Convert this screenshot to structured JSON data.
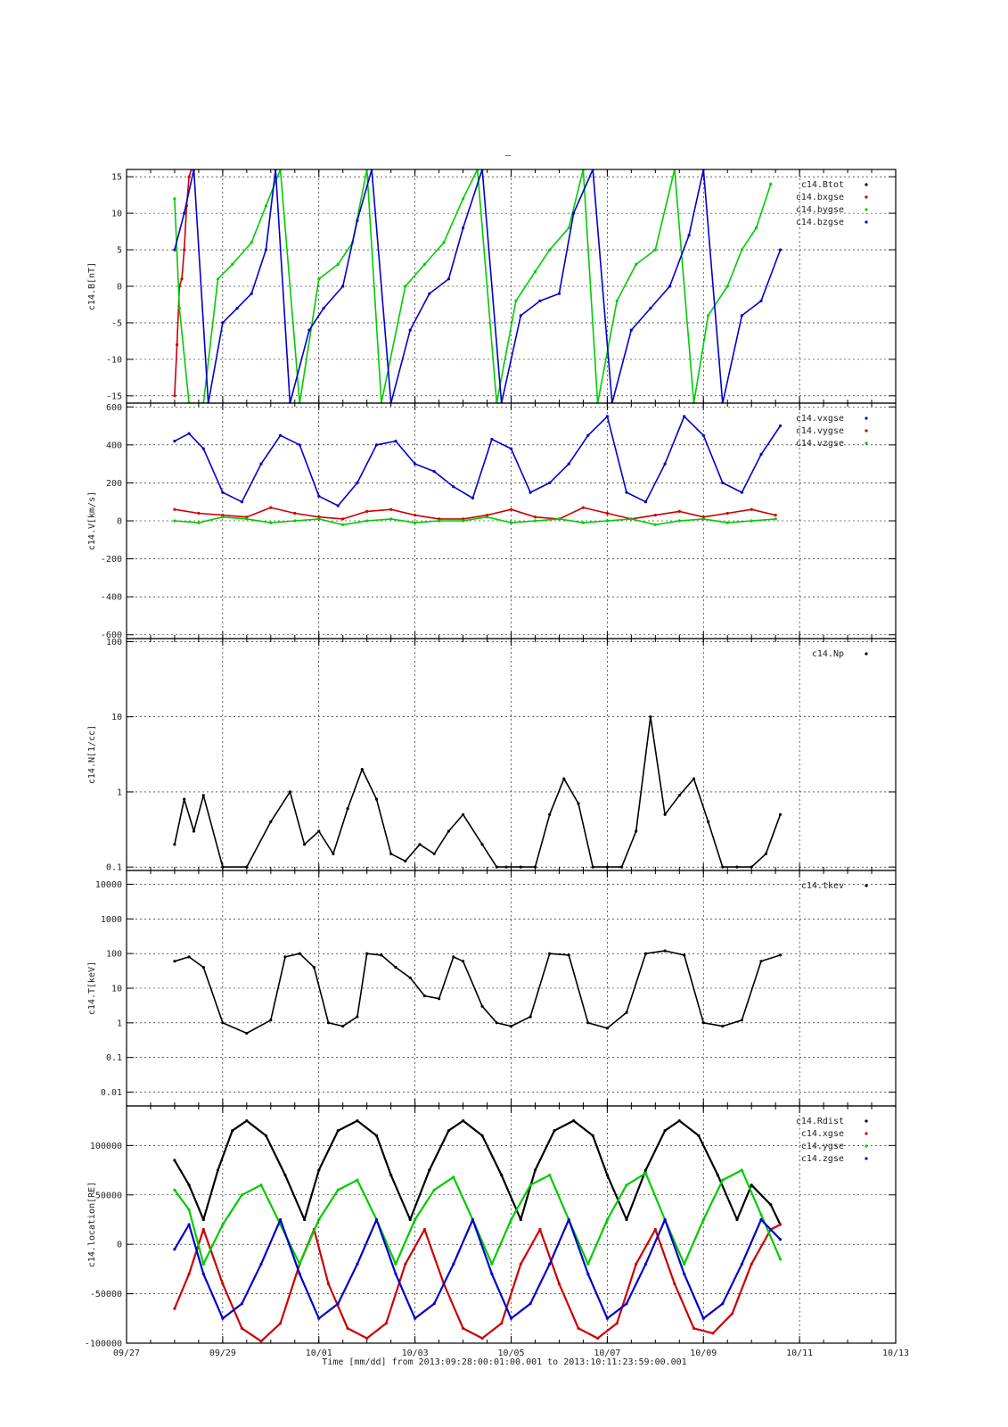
{
  "figure": {
    "top_label": "–",
    "time_label": "Time [mm/dd]  from 2013:09:28:00:01:00.001  to  2013:10:11:23:59:00.001"
  },
  "colors": {
    "black": "#000000",
    "red": "#cc0000",
    "green": "#00cc00",
    "blue": "#0000cc"
  },
  "chart_data": [
    {
      "type": "scatter",
      "ylabel": "c14.B[nT]",
      "ylim": [
        -16,
        16
      ],
      "yticks": [
        -15,
        -10,
        -5,
        0,
        5,
        10,
        15
      ],
      "legend": [
        "c14.Btot",
        "c14.bxgse",
        "c14.bygse",
        "c14.bzgse"
      ],
      "series": [
        {
          "name": "c14.bxgse",
          "color": "red",
          "x": [
            1.0,
            1.05,
            1.1,
            1.15,
            1.2,
            1.25,
            1.3,
            1.35,
            1.4
          ],
          "y": [
            -15,
            -8,
            0,
            1,
            5,
            11,
            15,
            16,
            16
          ]
        },
        {
          "name": "c14.bygse",
          "color": "green",
          "x": [
            1.0,
            1.1,
            1.3,
            1.6,
            1.9,
            2.2,
            2.6,
            2.9,
            3.2,
            3.6,
            4.0,
            4.4,
            4.7,
            5.0,
            5.3,
            5.8,
            6.2,
            6.6,
            7.0,
            7.3,
            7.7,
            8.1,
            8.5,
            8.8,
            9.2,
            9.5,
            9.8,
            10.2,
            10.6,
            11.0,
            11.4,
            11.8,
            12.1,
            12.5,
            12.8,
            13.1,
            13.4
          ],
          "y": [
            12,
            -3,
            -16,
            -16,
            1,
            3,
            6,
            11,
            16,
            -16,
            1,
            3,
            6,
            16,
            -16,
            0,
            3,
            6,
            12,
            16,
            -16,
            -2,
            2,
            5,
            8,
            16,
            -16,
            -2,
            3,
            5,
            16,
            -16,
            -4,
            0,
            5,
            8,
            14
          ]
        },
        {
          "name": "c14.bzgse",
          "color": "blue",
          "x": [
            1.0,
            1.2,
            1.4,
            1.7,
            2.0,
            2.3,
            2.6,
            2.9,
            3.1,
            3.4,
            3.8,
            4.1,
            4.5,
            4.8,
            5.1,
            5.5,
            5.9,
            6.3,
            6.7,
            7.0,
            7.4,
            7.8,
            8.2,
            8.6,
            9.0,
            9.3,
            9.7,
            10.1,
            10.5,
            10.9,
            11.3,
            11.7,
            12.0,
            12.4,
            12.8,
            13.2,
            13.6
          ],
          "y": [
            5,
            10,
            16,
            -16,
            -5,
            -3,
            -1,
            5,
            16,
            -16,
            -6,
            -3,
            0,
            9,
            16,
            -16,
            -6,
            -1,
            1,
            8,
            16,
            -16,
            -4,
            -2,
            -1,
            10,
            16,
            -16,
            -6,
            -3,
            0,
            7,
            16,
            -16,
            -4,
            -2,
            5
          ]
        }
      ]
    },
    {
      "type": "scatter",
      "ylabel": "c14.V[km/s]",
      "ylim": [
        -620,
        620
      ],
      "yticks": [
        -600,
        -400,
        -200,
        0,
        200,
        400,
        600
      ],
      "legend": [
        "c14.vxgse",
        "c14.vygse",
        "c14.vzgse"
      ],
      "series": [
        {
          "name": "c14.vxgse",
          "color": "blue",
          "x": [
            1.0,
            1.3,
            1.6,
            2.0,
            2.4,
            2.8,
            3.2,
            3.6,
            4.0,
            4.4,
            4.8,
            5.2,
            5.6,
            6.0,
            6.4,
            6.8,
            7.2,
            7.6,
            8.0,
            8.4,
            8.8,
            9.2,
            9.6,
            10.0,
            10.4,
            10.8,
            11.2,
            11.6,
            12.0,
            12.4,
            12.8,
            13.2,
            13.6
          ],
          "y": [
            420,
            460,
            380,
            150,
            100,
            300,
            450,
            400,
            130,
            80,
            200,
            400,
            420,
            300,
            260,
            180,
            120,
            430,
            380,
            150,
            200,
            300,
            450,
            550,
            150,
            100,
            300,
            550,
            450,
            200,
            150,
            350,
            500
          ]
        },
        {
          "name": "c14.vygse",
          "color": "red",
          "x": [
            1.0,
            1.5,
            2.0,
            2.5,
            3.0,
            3.5,
            4.0,
            4.5,
            5.0,
            5.5,
            6.0,
            6.5,
            7.0,
            7.5,
            8.0,
            8.5,
            9.0,
            9.5,
            10.0,
            10.5,
            11.0,
            11.5,
            12.0,
            12.5,
            13.0,
            13.5
          ],
          "y": [
            60,
            40,
            30,
            20,
            70,
            40,
            20,
            10,
            50,
            60,
            30,
            10,
            10,
            30,
            60,
            20,
            10,
            70,
            40,
            10,
            30,
            50,
            20,
            40,
            60,
            30
          ]
        },
        {
          "name": "c14.vzgse",
          "color": "green",
          "x": [
            1.0,
            1.5,
            2.0,
            2.5,
            3.0,
            3.5,
            4.0,
            4.5,
            5.0,
            5.5,
            6.0,
            6.5,
            7.0,
            7.5,
            8.0,
            8.5,
            9.0,
            9.5,
            10.0,
            10.5,
            11.0,
            11.5,
            12.0,
            12.5,
            13.0,
            13.5
          ],
          "y": [
            0,
            -10,
            20,
            10,
            -10,
            0,
            10,
            -20,
            0,
            10,
            -10,
            0,
            0,
            20,
            -10,
            0,
            10,
            -10,
            0,
            10,
            -20,
            0,
            10,
            -10,
            0,
            10
          ]
        }
      ]
    },
    {
      "type": "scatter",
      "ylabel": "c14.N[1/cc]",
      "yscale": "log",
      "ylim": [
        0.09,
        110
      ],
      "yticks": [
        0.1,
        1,
        10,
        100
      ],
      "legend": [
        "c14.Np"
      ],
      "series": [
        {
          "name": "c14.Np",
          "color": "black",
          "x": [
            1.0,
            1.2,
            1.4,
            1.6,
            2.0,
            2.5,
            3.0,
            3.4,
            3.7,
            4.0,
            4.3,
            4.6,
            4.9,
            5.2,
            5.5,
            5.8,
            6.1,
            6.4,
            6.7,
            7.0,
            7.4,
            7.7,
            7.9,
            8.2,
            8.5,
            8.8,
            9.1,
            9.4,
            9.7,
            10.0,
            10.3,
            10.6,
            10.9,
            11.2,
            11.5,
            11.8,
            12.1,
            12.4,
            12.7,
            13.0,
            13.3,
            13.6
          ],
          "y": [
            0.2,
            0.8,
            0.3,
            0.9,
            0.1,
            0.1,
            0.4,
            1.0,
            0.2,
            0.3,
            0.15,
            0.6,
            2.0,
            0.8,
            0.15,
            0.12,
            0.2,
            0.15,
            0.3,
            0.5,
            0.2,
            0.1,
            0.1,
            0.1,
            0.1,
            0.5,
            1.5,
            0.7,
            0.1,
            0.1,
            0.1,
            0.3,
            10.0,
            0.5,
            0.9,
            1.5,
            0.4,
            0.1,
            0.1,
            0.1,
            0.15,
            0.5
          ]
        }
      ]
    },
    {
      "type": "scatter",
      "ylabel": "c14.T[keV]",
      "yscale": "log",
      "ylim": [
        0.004,
        25000
      ],
      "yticks": [
        0.01,
        0.1,
        1,
        10,
        100,
        1000,
        10000
      ],
      "legend": [
        "c14.tkev"
      ],
      "series": [
        {
          "name": "c14.tkev",
          "color": "black",
          "x": [
            1.0,
            1.3,
            1.6,
            2.0,
            2.5,
            3.0,
            3.3,
            3.6,
            3.9,
            4.2,
            4.5,
            4.8,
            5.0,
            5.3,
            5.6,
            5.9,
            6.2,
            6.5,
            6.8,
            7.0,
            7.4,
            7.7,
            8.0,
            8.4,
            8.8,
            9.2,
            9.6,
            10.0,
            10.4,
            10.8,
            11.2,
            11.6,
            12.0,
            12.4,
            12.8,
            13.2,
            13.6
          ],
          "y": [
            60,
            80,
            40,
            1.0,
            0.5,
            1.2,
            80,
            100,
            40,
            1.0,
            0.8,
            1.5,
            100,
            90,
            40,
            20,
            6,
            5,
            80,
            60,
            3,
            1,
            0.8,
            1.5,
            100,
            90,
            1,
            0.7,
            2,
            100,
            120,
            90,
            1,
            0.8,
            1.2,
            60,
            90
          ]
        }
      ]
    },
    {
      "type": "line",
      "ylabel": "c14.location[RE]",
      "ylim": [
        -100000,
        140000
      ],
      "yticks": [
        -100000,
        -50000,
        0,
        50000,
        100000,
        150000
      ],
      "legend": [
        "c14.Rdist",
        "c14.xgse",
        "c14.ygse",
        "c14.zgse"
      ],
      "series": [
        {
          "name": "c14.Rdist",
          "color": "black",
          "x": [
            1.0,
            1.3,
            1.6,
            1.9,
            2.2,
            2.5,
            2.9,
            3.3,
            3.7,
            4.0,
            4.4,
            4.8,
            5.2,
            5.5,
            5.9,
            6.3,
            6.7,
            7.0,
            7.4,
            7.8,
            8.2,
            8.5,
            8.9,
            9.3,
            9.7,
            10.0,
            10.4,
            10.8,
            11.2,
            11.5,
            11.9,
            12.3,
            12.7,
            13.0,
            13.4,
            13.6
          ],
          "y": [
            85000,
            60000,
            25000,
            75000,
            115000,
            125000,
            110000,
            70000,
            25000,
            75000,
            115000,
            125000,
            110000,
            70000,
            25000,
            75000,
            115000,
            125000,
            110000,
            70000,
            25000,
            75000,
            115000,
            125000,
            110000,
            70000,
            25000,
            75000,
            115000,
            125000,
            110000,
            70000,
            25000,
            60000,
            40000,
            20000
          ]
        },
        {
          "name": "c14.xgse",
          "color": "red",
          "x": [
            1.0,
            1.3,
            1.6,
            2.0,
            2.4,
            2.8,
            3.2,
            3.6,
            3.9,
            4.2,
            4.6,
            5.0,
            5.4,
            5.8,
            6.2,
            6.6,
            7.0,
            7.4,
            7.8,
            8.2,
            8.6,
            9.0,
            9.4,
            9.8,
            10.2,
            10.6,
            11.0,
            11.4,
            11.8,
            12.2,
            12.6,
            13.0,
            13.4,
            13.6
          ],
          "y": [
            -65000,
            -30000,
            15000,
            -40000,
            -85000,
            -98000,
            -80000,
            -20000,
            15000,
            -40000,
            -85000,
            -95000,
            -80000,
            -20000,
            15000,
            -40000,
            -85000,
            -95000,
            -80000,
            -20000,
            15000,
            -40000,
            -85000,
            -95000,
            -80000,
            -20000,
            15000,
            -40000,
            -85000,
            -90000,
            -70000,
            -20000,
            15000,
            20000
          ]
        },
        {
          "name": "c14.ygse",
          "color": "green",
          "x": [
            1.0,
            1.3,
            1.6,
            2.0,
            2.4,
            2.8,
            3.2,
            3.6,
            4.0,
            4.4,
            4.8,
            5.2,
            5.6,
            6.0,
            6.4,
            6.8,
            7.2,
            7.6,
            8.0,
            8.4,
            8.8,
            9.2,
            9.6,
            10.0,
            10.4,
            10.8,
            11.2,
            11.6,
            12.0,
            12.4,
            12.8,
            13.2,
            13.6
          ],
          "y": [
            55000,
            35000,
            -20000,
            20000,
            50000,
            60000,
            20000,
            -20000,
            25000,
            55000,
            65000,
            25000,
            -20000,
            25000,
            55000,
            68000,
            25000,
            -20000,
            25000,
            60000,
            70000,
            25000,
            -20000,
            25000,
            60000,
            72000,
            25000,
            -20000,
            25000,
            65000,
            75000,
            30000,
            -15000
          ]
        },
        {
          "name": "c14.zgse",
          "color": "blue",
          "x": [
            1.0,
            1.3,
            1.6,
            2.0,
            2.4,
            2.8,
            3.2,
            3.6,
            4.0,
            4.4,
            4.8,
            5.2,
            5.6,
            6.0,
            6.4,
            6.8,
            7.2,
            7.6,
            8.0,
            8.4,
            8.8,
            9.2,
            9.6,
            10.0,
            10.4,
            10.8,
            11.2,
            11.6,
            12.0,
            12.4,
            12.8,
            13.2,
            13.6
          ],
          "y": [
            -5000,
            20000,
            -30000,
            -75000,
            -60000,
            -20000,
            25000,
            -30000,
            -75000,
            -60000,
            -20000,
            25000,
            -30000,
            -75000,
            -60000,
            -20000,
            25000,
            -30000,
            -75000,
            -60000,
            -20000,
            25000,
            -30000,
            -75000,
            -60000,
            -20000,
            25000,
            -30000,
            -75000,
            -60000,
            -20000,
            25000,
            5000
          ]
        }
      ]
    }
  ],
  "x_axis": {
    "range": [
      0,
      16
    ],
    "ticks": [
      {
        "x": 0,
        "label": "09/27"
      },
      {
        "x": 2,
        "label": "09/29"
      },
      {
        "x": 4,
        "label": "10/01"
      },
      {
        "x": 6,
        "label": "10/03"
      },
      {
        "x": 8,
        "label": "10/05"
      },
      {
        "x": 10,
        "label": "10/07"
      },
      {
        "x": 12,
        "label": "10/09"
      },
      {
        "x": 14,
        "label": "10/11"
      },
      {
        "x": 16,
        "label": "10/13"
      }
    ]
  }
}
